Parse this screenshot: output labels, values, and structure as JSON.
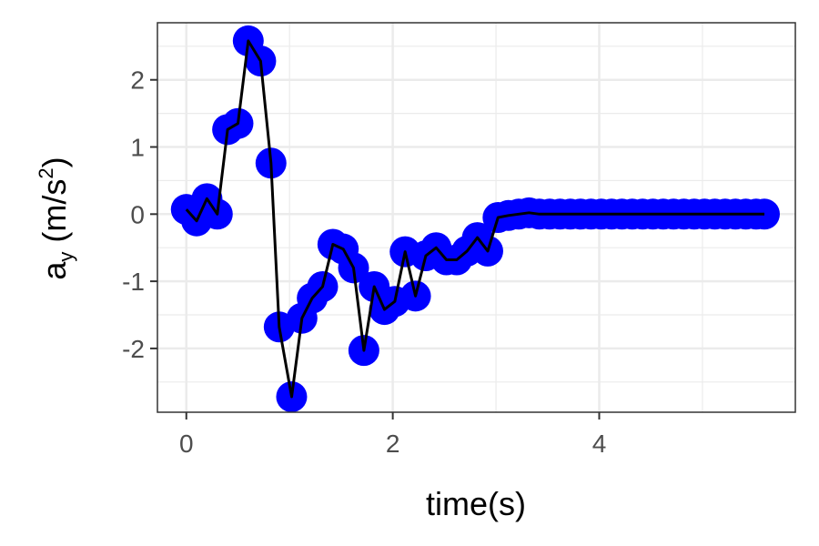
{
  "chart_data": {
    "type": "scatter",
    "xlabel": "time(s)",
    "ylabel": {
      "base": "a",
      "subscript": "y",
      "unit_open": " (m/s",
      "superscript": "2",
      "unit_close": ")"
    },
    "xlim": [
      -0.28,
      5.9
    ],
    "ylim": [
      -2.95,
      2.85
    ],
    "xticks": [
      0,
      2,
      4
    ],
    "xtick_labels": [
      "0",
      "2",
      "4"
    ],
    "yticks": [
      -2,
      -1,
      0,
      1,
      2
    ],
    "ytick_labels": [
      "-2",
      "-1",
      "0",
      "1",
      "2"
    ],
    "grid": true,
    "legend": "none",
    "series": [
      {
        "marker_color": "#0000ff",
        "line_color": "#000000",
        "points": [
          {
            "x": 0.0,
            "y": 0.07
          },
          {
            "x": 0.1,
            "y": -0.1
          },
          {
            "x": 0.2,
            "y": 0.23
          },
          {
            "x": 0.3,
            "y": 0.0
          },
          {
            "x": 0.4,
            "y": 1.26
          },
          {
            "x": 0.5,
            "y": 1.35
          },
          {
            "x": 0.6,
            "y": 2.58
          },
          {
            "x": 0.72,
            "y": 2.28
          },
          {
            "x": 0.82,
            "y": 0.76
          },
          {
            "x": 0.9,
            "y": -1.68
          },
          {
            "x": 1.02,
            "y": -2.72
          },
          {
            "x": 1.12,
            "y": -1.55
          },
          {
            "x": 1.22,
            "y": -1.25
          },
          {
            "x": 1.32,
            "y": -1.08
          },
          {
            "x": 1.42,
            "y": -0.45
          },
          {
            "x": 1.52,
            "y": -0.52
          },
          {
            "x": 1.62,
            "y": -0.8
          },
          {
            "x": 1.72,
            "y": -2.03
          },
          {
            "x": 1.82,
            "y": -1.08
          },
          {
            "x": 1.92,
            "y": -1.42
          },
          {
            "x": 2.02,
            "y": -1.3
          },
          {
            "x": 2.12,
            "y": -0.56
          },
          {
            "x": 2.22,
            "y": -1.22
          },
          {
            "x": 2.32,
            "y": -0.62
          },
          {
            "x": 2.42,
            "y": -0.5
          },
          {
            "x": 2.52,
            "y": -0.68
          },
          {
            "x": 2.62,
            "y": -0.68
          },
          {
            "x": 2.72,
            "y": -0.55
          },
          {
            "x": 2.82,
            "y": -0.35
          },
          {
            "x": 2.92,
            "y": -0.55
          },
          {
            "x": 3.02,
            "y": -0.05
          },
          {
            "x": 3.12,
            "y": -0.02
          },
          {
            "x": 3.22,
            "y": 0.0
          },
          {
            "x": 3.32,
            "y": 0.02
          },
          {
            "x": 3.42,
            "y": 0.0
          },
          {
            "x": 3.52,
            "y": 0.0
          },
          {
            "x": 3.62,
            "y": 0.0
          },
          {
            "x": 3.72,
            "y": 0.0
          },
          {
            "x": 3.82,
            "y": 0.0
          },
          {
            "x": 3.92,
            "y": 0.0
          },
          {
            "x": 4.02,
            "y": 0.0
          },
          {
            "x": 4.12,
            "y": 0.0
          },
          {
            "x": 4.22,
            "y": 0.0
          },
          {
            "x": 4.32,
            "y": 0.0
          },
          {
            "x": 4.42,
            "y": 0.0
          },
          {
            "x": 4.52,
            "y": 0.0
          },
          {
            "x": 4.62,
            "y": 0.0
          },
          {
            "x": 4.72,
            "y": 0.0
          },
          {
            "x": 4.82,
            "y": 0.0
          },
          {
            "x": 4.92,
            "y": 0.0
          },
          {
            "x": 5.02,
            "y": 0.0
          },
          {
            "x": 5.12,
            "y": 0.0
          },
          {
            "x": 5.22,
            "y": 0.0
          },
          {
            "x": 5.32,
            "y": 0.0
          },
          {
            "x": 5.42,
            "y": 0.0
          },
          {
            "x": 5.52,
            "y": 0.0
          },
          {
            "x": 5.6,
            "y": 0.0
          }
        ]
      }
    ]
  }
}
